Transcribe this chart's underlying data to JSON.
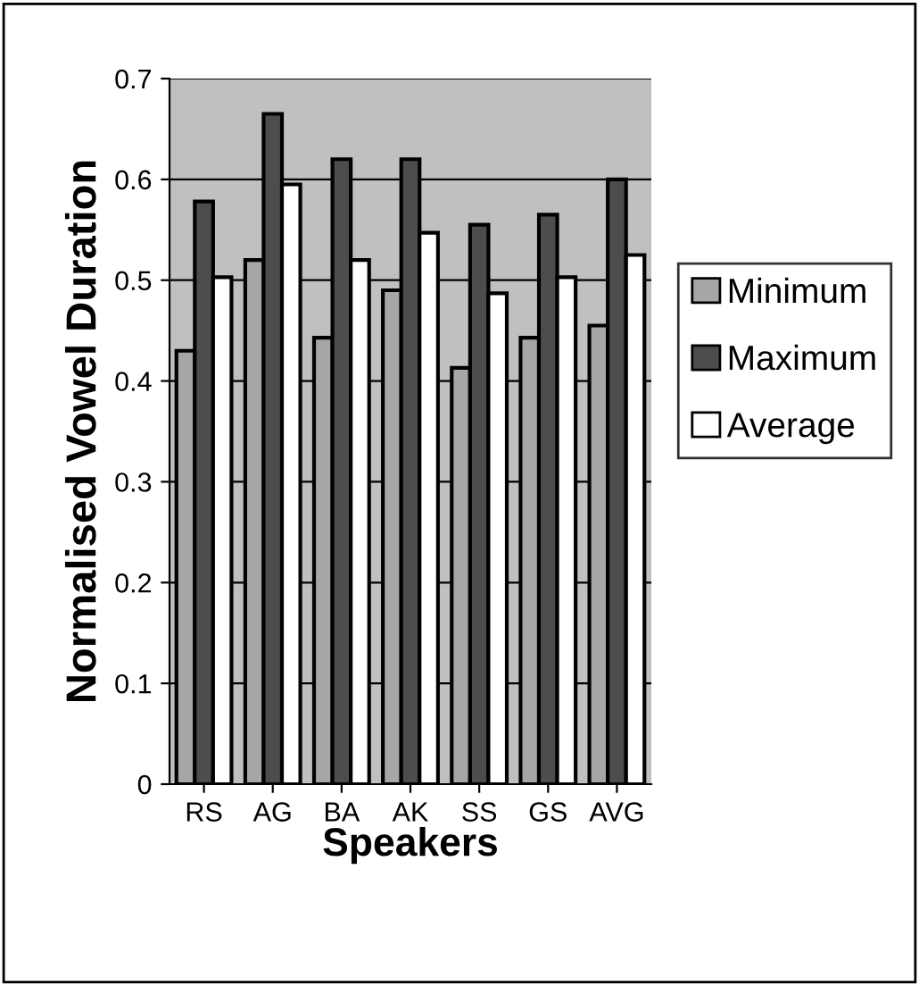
{
  "chart_data": {
    "type": "bar",
    "xlabel": "Speakers",
    "ylabel": "Normalised Vowel Duration",
    "categories": [
      "RS",
      "AG",
      "BA",
      "AK",
      "SS",
      "GS",
      "AVG"
    ],
    "series": [
      {
        "name": "Minimum",
        "color": "#a6a6a6",
        "values": [
          0.43,
          0.52,
          0.443,
          0.49,
          0.413,
          0.443,
          0.455
        ]
      },
      {
        "name": "Maximum",
        "color": "#4d4d4d",
        "values": [
          0.578,
          0.665,
          0.62,
          0.62,
          0.555,
          0.565,
          0.6
        ]
      },
      {
        "name": "Average",
        "color": "#ffffff",
        "values": [
          0.503,
          0.595,
          0.52,
          0.547,
          0.487,
          0.503,
          0.525
        ]
      }
    ],
    "ylim": [
      0,
      0.7
    ],
    "yticks": [
      0,
      0.1,
      0.2,
      0.3,
      0.4,
      0.5,
      0.6,
      0.7
    ],
    "grid": "y",
    "legend": "right"
  }
}
